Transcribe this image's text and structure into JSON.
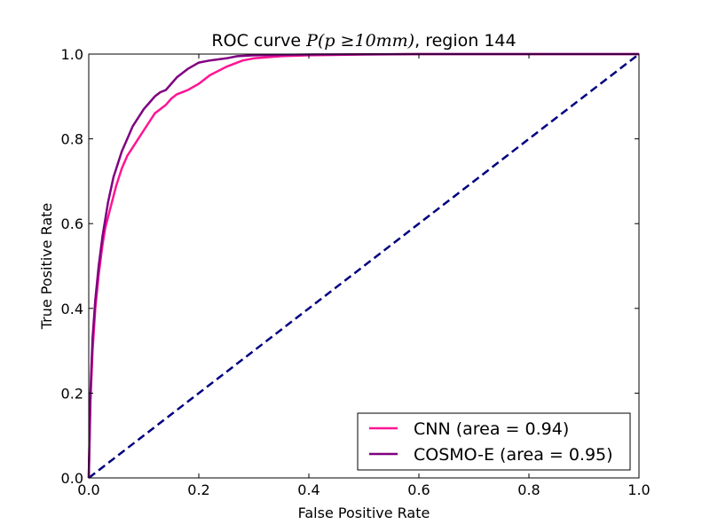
{
  "chart_data": {
    "type": "line",
    "title": {
      "prefix": "ROC curve ",
      "math": "P(p ≥10mm)",
      "suffix": ", region 144"
    },
    "xlabel": "False Positive Rate",
    "ylabel": "True Positive Rate",
    "xlim": [
      0.0,
      1.0
    ],
    "ylim": [
      0.0,
      1.0
    ],
    "xticks": [
      "0.0",
      "0.2",
      "0.4",
      "0.6",
      "0.8",
      "1.0"
    ],
    "yticks": [
      "0.0",
      "0.2",
      "0.4",
      "0.6",
      "0.8",
      "1.0"
    ],
    "grid": false,
    "legend_position": "bottom-right",
    "series": [
      {
        "name": "CNN (area = 0.94)",
        "color": "#ff1493",
        "x": [
          0,
          0.003,
          0.007,
          0.012,
          0.018,
          0.025,
          0.03,
          0.04,
          0.05,
          0.06,
          0.07,
          0.08,
          0.09,
          0.1,
          0.11,
          0.12,
          0.13,
          0.14,
          0.15,
          0.16,
          0.18,
          0.2,
          0.22,
          0.25,
          0.28,
          0.3,
          0.35,
          0.4,
          0.5,
          0.6,
          0.8,
          1.0
        ],
        "y": [
          0,
          0.18,
          0.3,
          0.4,
          0.48,
          0.55,
          0.59,
          0.64,
          0.69,
          0.73,
          0.76,
          0.78,
          0.8,
          0.82,
          0.84,
          0.86,
          0.87,
          0.88,
          0.895,
          0.905,
          0.915,
          0.93,
          0.95,
          0.97,
          0.985,
          0.99,
          0.995,
          0.997,
          0.999,
          1.0,
          1.0,
          1.0
        ]
      },
      {
        "name": "COSMO-E (area = 0.95)",
        "color": "#800080",
        "x": [
          0,
          0.003,
          0.007,
          0.012,
          0.018,
          0.025,
          0.03,
          0.035,
          0.04,
          0.045,
          0.05,
          0.055,
          0.06,
          0.07,
          0.08,
          0.09,
          0.1,
          0.11,
          0.12,
          0.13,
          0.14,
          0.15,
          0.16,
          0.18,
          0.2,
          0.22,
          0.25,
          0.27,
          0.3,
          0.4,
          0.6,
          1.0
        ],
        "y": [
          0,
          0.2,
          0.33,
          0.42,
          0.5,
          0.57,
          0.61,
          0.65,
          0.68,
          0.71,
          0.73,
          0.75,
          0.77,
          0.8,
          0.83,
          0.85,
          0.87,
          0.885,
          0.9,
          0.91,
          0.915,
          0.93,
          0.945,
          0.965,
          0.98,
          0.985,
          0.99,
          0.995,
          0.997,
          0.999,
          1.0,
          1.0
        ]
      }
    ],
    "reference_line": {
      "x": [
        0,
        1
      ],
      "y": [
        0,
        1
      ],
      "color": "#000080",
      "style": "dashed"
    }
  }
}
